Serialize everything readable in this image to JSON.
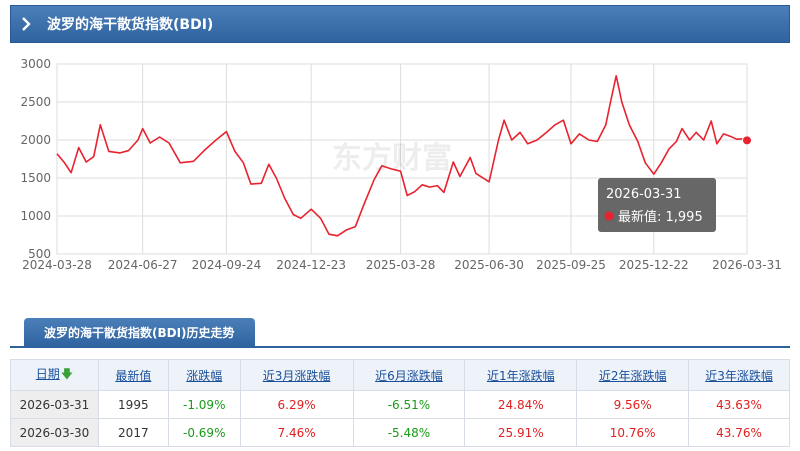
{
  "header": {
    "title": "波罗的海干散货指数(BDI)"
  },
  "chart_data": {
    "type": "line",
    "title": "",
    "xlabel": "",
    "ylabel": "",
    "ylim": [
      500,
      3000
    ],
    "y_ticks": [
      500,
      1000,
      1500,
      2000,
      2500,
      3000
    ],
    "x_tick_labels": [
      "2024-03-28",
      "2024-06-27",
      "2024-09-24",
      "2024-12-23",
      "2025-03-28",
      "2025-06-30",
      "2025-09-25",
      "2025-12-22",
      "2026-03-31"
    ],
    "grid": true,
    "line_color": "#e8222e",
    "watermark": "东方财富",
    "points": [
      [
        "2024-03-28",
        1820
      ],
      [
        "2024-04-05",
        1700
      ],
      [
        "2024-04-12",
        1570
      ],
      [
        "2024-04-20",
        1900
      ],
      [
        "2024-04-28",
        1710
      ],
      [
        "2024-05-06",
        1780
      ],
      [
        "2024-05-13",
        2200
      ],
      [
        "2024-05-22",
        1850
      ],
      [
        "2024-06-03",
        1830
      ],
      [
        "2024-06-12",
        1860
      ],
      [
        "2024-06-22",
        2000
      ],
      [
        "2024-06-27",
        2150
      ],
      [
        "2024-07-05",
        1960
      ],
      [
        "2024-07-15",
        2040
      ],
      [
        "2024-07-25",
        1960
      ],
      [
        "2024-08-06",
        1700
      ],
      [
        "2024-08-20",
        1720
      ],
      [
        "2024-09-02",
        1880
      ],
      [
        "2024-09-12",
        1990
      ],
      [
        "2024-09-24",
        2110
      ],
      [
        "2024-10-03",
        1850
      ],
      [
        "2024-10-12",
        1700
      ],
      [
        "2024-10-20",
        1420
      ],
      [
        "2024-10-31",
        1430
      ],
      [
        "2024-11-08",
        1680
      ],
      [
        "2024-11-16",
        1500
      ],
      [
        "2024-11-25",
        1230
      ],
      [
        "2024-12-04",
        1020
      ],
      [
        "2024-12-12",
        970
      ],
      [
        "2024-12-23",
        1090
      ],
      [
        "2025-01-02",
        970
      ],
      [
        "2025-01-11",
        760
      ],
      [
        "2025-01-20",
        740
      ],
      [
        "2025-01-30",
        820
      ],
      [
        "2025-02-08",
        860
      ],
      [
        "2025-02-17",
        1150
      ],
      [
        "2025-02-28",
        1480
      ],
      [
        "2025-03-08",
        1660
      ],
      [
        "2025-03-18",
        1620
      ],
      [
        "2025-03-28",
        1590
      ],
      [
        "2025-04-04",
        1270
      ],
      [
        "2025-04-12",
        1320
      ],
      [
        "2025-04-20",
        1410
      ],
      [
        "2025-04-28",
        1380
      ],
      [
        "2025-05-06",
        1400
      ],
      [
        "2025-05-13",
        1310
      ],
      [
        "2025-05-23",
        1710
      ],
      [
        "2025-05-30",
        1520
      ],
      [
        "2025-06-10",
        1770
      ],
      [
        "2025-06-16",
        1560
      ],
      [
        "2025-06-30",
        1450
      ],
      [
        "2025-07-10",
        2000
      ],
      [
        "2025-07-16",
        2260
      ],
      [
        "2025-07-24",
        2000
      ],
      [
        "2025-08-02",
        2100
      ],
      [
        "2025-08-10",
        1950
      ],
      [
        "2025-08-20",
        2000
      ],
      [
        "2025-08-30",
        2100
      ],
      [
        "2025-09-08",
        2200
      ],
      [
        "2025-09-17",
        2260
      ],
      [
        "2025-09-25",
        1950
      ],
      [
        "2025-10-04",
        2080
      ],
      [
        "2025-10-14",
        2000
      ],
      [
        "2025-10-23",
        1980
      ],
      [
        "2025-11-01",
        2200
      ],
      [
        "2025-11-06",
        2500
      ],
      [
        "2025-11-12",
        2845
      ],
      [
        "2025-11-18",
        2500
      ],
      [
        "2025-11-26",
        2200
      ],
      [
        "2025-12-05",
        1980
      ],
      [
        "2025-12-13",
        1700
      ],
      [
        "2025-12-22",
        1550
      ],
      [
        "2025-12-30",
        1700
      ],
      [
        "2026-01-07",
        1880
      ],
      [
        "2026-01-15",
        1980
      ],
      [
        "2026-01-21",
        2150
      ],
      [
        "2026-01-29",
        2000
      ],
      [
        "2026-02-05",
        2100
      ],
      [
        "2026-02-13",
        2000
      ],
      [
        "2026-02-21",
        2250
      ],
      [
        "2026-02-27",
        1950
      ],
      [
        "2026-03-06",
        2080
      ],
      [
        "2026-03-13",
        2050
      ],
      [
        "2026-03-20",
        2010
      ],
      [
        "2026-03-30",
        2017
      ],
      [
        "2026-03-31",
        1995
      ]
    ],
    "tooltip": {
      "date": "2026-03-31",
      "label": "最新值: 1,995"
    }
  },
  "history": {
    "tab_label": "波罗的海干散货指数(BDI)历史走势",
    "headers": [
      "日期",
      "最新值",
      "涨跌幅",
      "近3月涨跌幅",
      "近6月涨跌幅",
      "近1年涨跌幅",
      "近2年涨跌幅",
      "近3年涨跌幅"
    ],
    "sort_icon": "down-arrow-icon",
    "rows": [
      {
        "date": "2026-03-31",
        "value": "1995",
        "change": "-1.09%",
        "m3": "6.29%",
        "m6": "-6.51%",
        "y1": "24.84%",
        "y2": "9.56%",
        "y3": "43.63%"
      },
      {
        "date": "2026-03-30",
        "value": "2017",
        "change": "-0.69%",
        "m3": "7.46%",
        "m6": "-5.48%",
        "y1": "25.91%",
        "y2": "10.76%",
        "y3": "43.76%"
      }
    ],
    "colors": {
      "up": "#e02020",
      "down": "#1a9a1a"
    }
  }
}
